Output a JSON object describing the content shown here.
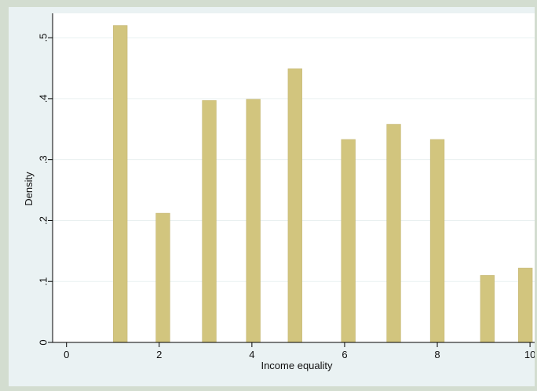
{
  "chart_data": {
    "type": "bar",
    "title": "",
    "xlabel": "Income equality",
    "ylabel": "Density",
    "xlim": [
      -0.3,
      10.1
    ],
    "ylim": [
      0,
      0.54
    ],
    "x_ticks": [
      0,
      2,
      4,
      6,
      8,
      10
    ],
    "x_tick_labels": [
      "0",
      "2",
      "4",
      "6",
      "8",
      "10"
    ],
    "y_ticks": [
      0,
      0.1,
      0.2,
      0.3,
      0.4,
      0.5
    ],
    "y_tick_labels": [
      "0",
      ".1",
      ".2",
      ".3",
      ".4",
      ".5"
    ],
    "grid": true,
    "bar_width": 0.3,
    "x": [
      1.16,
      2.08,
      3.08,
      4.03,
      4.93,
      6.08,
      7.06,
      8.0,
      9.08,
      9.9
    ],
    "values": [
      0.52,
      0.212,
      0.397,
      0.399,
      0.449,
      0.333,
      0.358,
      0.333,
      0.11,
      0.122
    ]
  },
  "colors": {
    "bar_fill": "#d2c57e",
    "bar_stroke": "#c6b877",
    "plot_background": "#ffffff",
    "grid": "#e9f0f0",
    "axis": "#000000",
    "page_background": "#eaf2f3",
    "frame": "#d3ddd0"
  }
}
